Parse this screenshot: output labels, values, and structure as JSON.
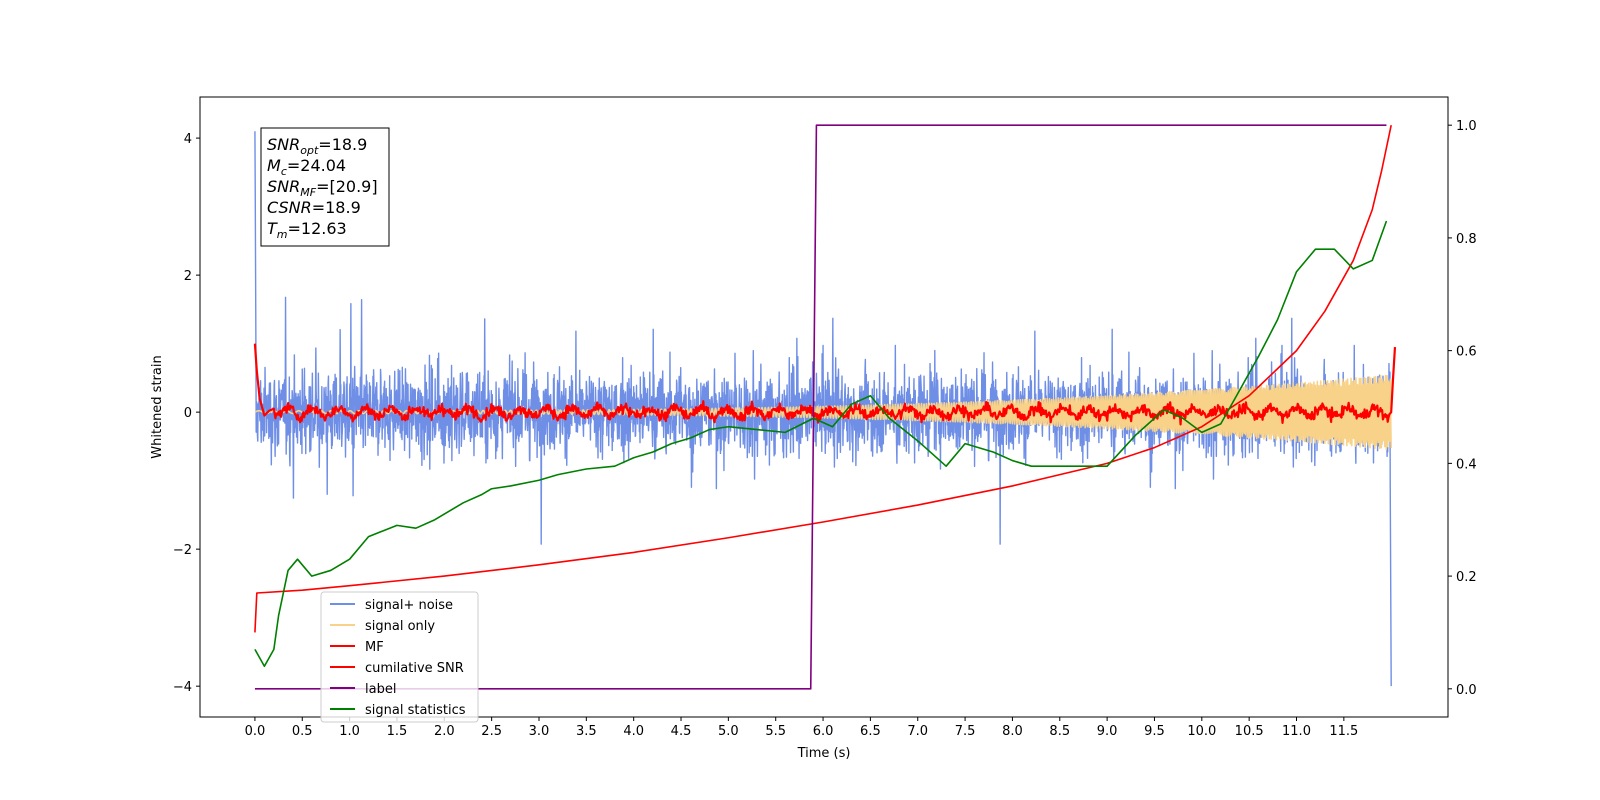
{
  "chart_data": {
    "type": "line",
    "xlabel": "Time (s)",
    "ylabel": "Whitened strain",
    "ylabel_right": "",
    "xlim": [
      -0.58,
      12.6
    ],
    "ylim_left": [
      -4.45,
      4.6
    ],
    "ylim_right": [
      -0.05,
      1.05
    ],
    "x_ticks": [
      "0.0",
      "0.5",
      "1.0",
      "1.5",
      "2.0",
      "2.5",
      "3.0",
      "3.5",
      "4.0",
      "4.5",
      "5.0",
      "5.5",
      "6.0",
      "6.5",
      "7.0",
      "7.5",
      "8.0",
      "8.5",
      "9.0",
      "9.5",
      "10.0",
      "10.5",
      "11.0",
      "11.5"
    ],
    "x_tick_values": [
      0,
      0.5,
      1,
      1.5,
      2,
      2.5,
      3,
      3.5,
      4,
      4.5,
      5,
      5.5,
      6,
      6.5,
      7,
      7.5,
      8,
      8.5,
      9,
      9.5,
      10,
      10.5,
      11,
      11.5
    ],
    "y_ticks_left": [
      "−4",
      "−2",
      "0",
      "2",
      "4"
    ],
    "y_tick_values_left": [
      -4,
      -2,
      0,
      2,
      4
    ],
    "y_ticks_right": [
      "0.0",
      "0.2",
      "0.4",
      "0.6",
      "0.8",
      "1.0"
    ],
    "y_tick_values_right": [
      0,
      0.2,
      0.4,
      0.6,
      0.8,
      1.0
    ],
    "annotation": {
      "lines": [
        {
          "base": "SNR",
          "sub": "opt",
          "value": "=18.9"
        },
        {
          "base": "M",
          "sub": "c",
          "value": "=24.04"
        },
        {
          "base": "SNR",
          "sub": "MF",
          "value": "=[20.9]"
        },
        {
          "base": "CSNR",
          "sub": "",
          "value": "=18.9"
        },
        {
          "base": "T",
          "sub": "m",
          "value": "=12.63"
        }
      ]
    },
    "legend": {
      "placement": "lower-left",
      "entries": [
        {
          "label": "signal+ noise",
          "color": "#6f8fe6"
        },
        {
          "label": "signal only",
          "color": "#f9d28a"
        },
        {
          "label": "MF",
          "color": "#ff0000"
        },
        {
          "label": "cumilative SNR",
          "color": "#ff0000"
        },
        {
          "label": "label",
          "color": "#800080"
        },
        {
          "label": "signal statistics",
          "color": "#008000"
        }
      ]
    },
    "series": [
      {
        "name": "signal+ noise",
        "axis": "left",
        "color": "#6f8fe6",
        "kind": "noise",
        "x_range": [
          0,
          12.0
        ],
        "std": 0.55,
        "spike_start": 4.1,
        "spike_end": -4.0
      },
      {
        "name": "signal only",
        "axis": "left",
        "color": "#f9d28a",
        "kind": "chirp",
        "x_range": [
          0,
          12.0
        ],
        "amp_start": 0.02,
        "amp_end": 0.55
      },
      {
        "name": "MF",
        "axis": "left",
        "color": "#ff0000",
        "kind": "mf",
        "x": [
          0,
          0.02,
          0.05,
          0.1,
          0.15,
          0.2,
          12.0,
          12.02,
          12.04
        ],
        "y": [
          1.0,
          0.6,
          0.2,
          -0.05,
          0.02,
          0.05,
          0.0,
          0.5,
          0.95
        ]
      },
      {
        "name": "cumilative SNR",
        "axis": "right",
        "color": "#ff0000",
        "x": [
          0,
          0.02,
          0.5,
          1,
          2,
          3,
          4,
          5,
          6,
          7,
          8,
          9,
          9.5,
          10,
          10.5,
          11,
          11.3,
          11.6,
          11.8,
          11.9,
          12.0
        ],
        "y": [
          0.1,
          0.17,
          0.175,
          0.183,
          0.2,
          0.22,
          0.242,
          0.268,
          0.296,
          0.326,
          0.36,
          0.4,
          0.428,
          0.465,
          0.52,
          0.6,
          0.67,
          0.76,
          0.85,
          0.92,
          1.0
        ]
      },
      {
        "name": "label",
        "axis": "right",
        "color": "#800080",
        "x": [
          0,
          5.87,
          5.93,
          11.95
        ],
        "y": [
          0.0,
          0.0,
          1.0,
          1.0
        ]
      },
      {
        "name": "signal statistics",
        "axis": "right",
        "color": "#008000",
        "x": [
          0,
          0.1,
          0.2,
          0.25,
          0.35,
          0.45,
          0.6,
          0.8,
          1.0,
          1.2,
          1.35,
          1.5,
          1.7,
          1.9,
          2.0,
          2.2,
          2.4,
          2.5,
          2.7,
          3.0,
          3.2,
          3.5,
          3.8,
          4.0,
          4.2,
          4.4,
          4.6,
          4.8,
          5.0,
          5.3,
          5.6,
          5.9,
          6.1,
          6.3,
          6.5,
          6.7,
          7.0,
          7.3,
          7.5,
          7.8,
          8.0,
          8.2,
          8.5,
          9.0,
          9.3,
          9.6,
          9.8,
          10.0,
          10.2,
          10.4,
          10.6,
          10.8,
          11.0,
          11.2,
          11.4,
          11.6,
          11.8,
          11.95
        ],
        "y": [
          0.07,
          0.04,
          0.07,
          0.13,
          0.21,
          0.23,
          0.2,
          0.21,
          0.23,
          0.27,
          0.28,
          0.29,
          0.285,
          0.3,
          0.31,
          0.33,
          0.345,
          0.355,
          0.36,
          0.37,
          0.38,
          0.39,
          0.395,
          0.41,
          0.42,
          0.435,
          0.445,
          0.46,
          0.465,
          0.46,
          0.455,
          0.48,
          0.465,
          0.505,
          0.52,
          0.48,
          0.44,
          0.395,
          0.435,
          0.42,
          0.405,
          0.395,
          0.395,
          0.395,
          0.45,
          0.495,
          0.48,
          0.455,
          0.47,
          0.53,
          0.59,
          0.655,
          0.74,
          0.78,
          0.78,
          0.745,
          0.76,
          0.83
        ]
      }
    ]
  }
}
